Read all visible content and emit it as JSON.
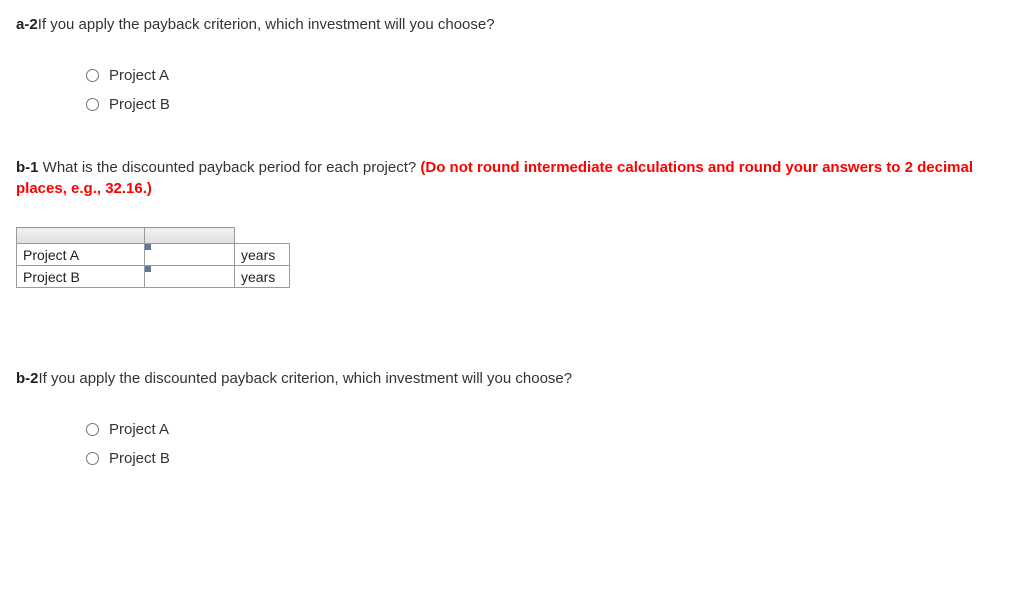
{
  "a2": {
    "label": "a-2",
    "prompt": "If you apply the payback criterion, which investment will you choose?",
    "options": [
      "Project A",
      "Project B"
    ]
  },
  "b1": {
    "label": "b-1",
    "prompt_plain": " What is the discounted payback period for each project? ",
    "prompt_bold": "(Do not round intermediate calculations and round your answers to 2 decimal places, e.g., 32.16.)",
    "rows": [
      {
        "label": "Project A",
        "unit": "years"
      },
      {
        "label": "Project B",
        "unit": "years"
      }
    ]
  },
  "b2": {
    "label": "b-2",
    "prompt": "If you apply the discounted payback criterion, which investment will you choose?",
    "options": [
      "Project A",
      "Project B"
    ]
  }
}
